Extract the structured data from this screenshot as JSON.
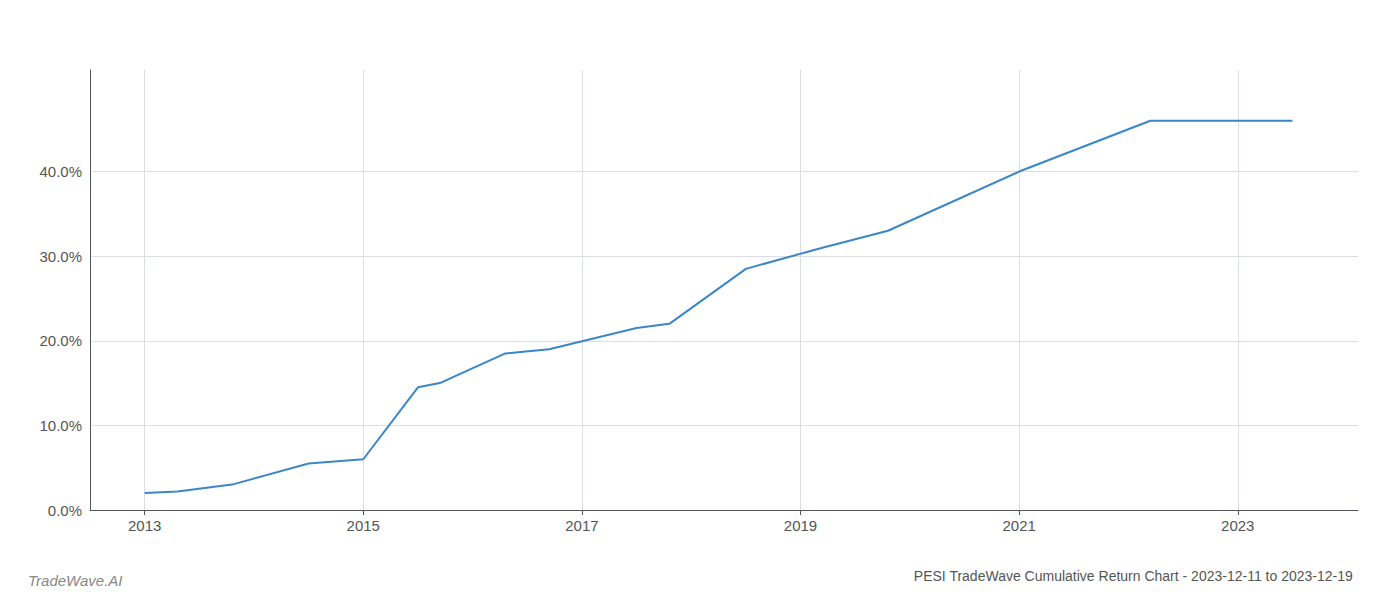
{
  "chart_data": {
    "type": "line",
    "title": "PESI TradeWave Cumulative Return Chart - 2023-12-11 to 2023-12-19",
    "annotations": [
      "TradeWave.AI"
    ],
    "x": [
      2013.0,
      2013.3,
      2013.8,
      2014.5,
      2015.0,
      2015.5,
      2015.7,
      2016.3,
      2016.7,
      2017.5,
      2017.8,
      2018.5,
      2019.2,
      2019.8,
      2021.0,
      2022.2,
      2023.5
    ],
    "values": [
      0.02,
      0.022,
      0.03,
      0.055,
      0.06,
      0.145,
      0.15,
      0.185,
      0.19,
      0.215,
      0.22,
      0.285,
      0.31,
      0.33,
      0.4,
      0.46,
      0.46
    ],
    "color": "#3a87c8",
    "xlim": [
      2012.5,
      2024.1
    ],
    "xticks": [
      2013,
      2015,
      2017,
      2019,
      2021,
      2023
    ],
    "ylim": [
      0.0,
      0.52
    ],
    "yticks": [
      {
        "value": 0.0,
        "label": "0.0%"
      },
      {
        "value": 0.1,
        "label": "10.0%"
      },
      {
        "value": 0.2,
        "label": "20.0%"
      },
      {
        "value": 0.3,
        "label": "30.0%"
      },
      {
        "value": 0.4,
        "label": "40.0%"
      }
    ],
    "grid": true
  }
}
